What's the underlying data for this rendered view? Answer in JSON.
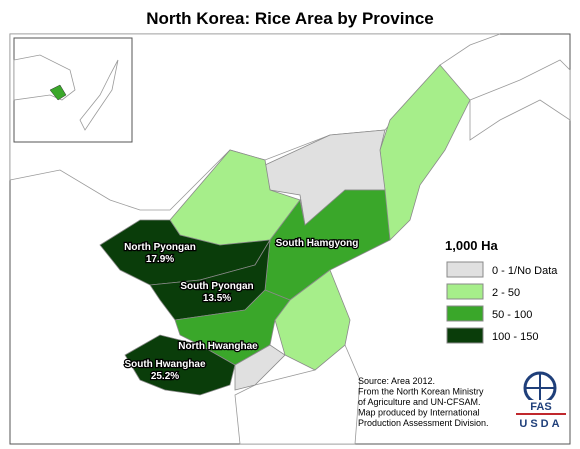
{
  "title": "North Korea: Rice Area by Province",
  "legend": {
    "title": "1,000 Ha",
    "items": [
      {
        "label": "0 - 1/No Data",
        "color": "#e0e0e0"
      },
      {
        "label": "2 - 50",
        "color": "#a6ee8a"
      },
      {
        "label": "50 - 100",
        "color": "#3aa72a"
      },
      {
        "label": "100 - 150",
        "color": "#0a3d0a"
      }
    ]
  },
  "provinces": [
    {
      "name": "North Pyongan",
      "share": "17.9%"
    },
    {
      "name": "South Pyongan",
      "share": "13.5%"
    },
    {
      "name": "South Hamgyong"
    },
    {
      "name": "North Hwanghae"
    },
    {
      "name": "South Hwanghae",
      "share": "25.2%"
    }
  ],
  "source": [
    "Source: Area 2012.",
    "From the North Korean Ministry",
    "of Agriculture and UN-CFSAM.",
    "Map produced by International",
    "Production Assessment Division."
  ],
  "logo": {
    "top": "FAS",
    "bottom": "USDA"
  }
}
